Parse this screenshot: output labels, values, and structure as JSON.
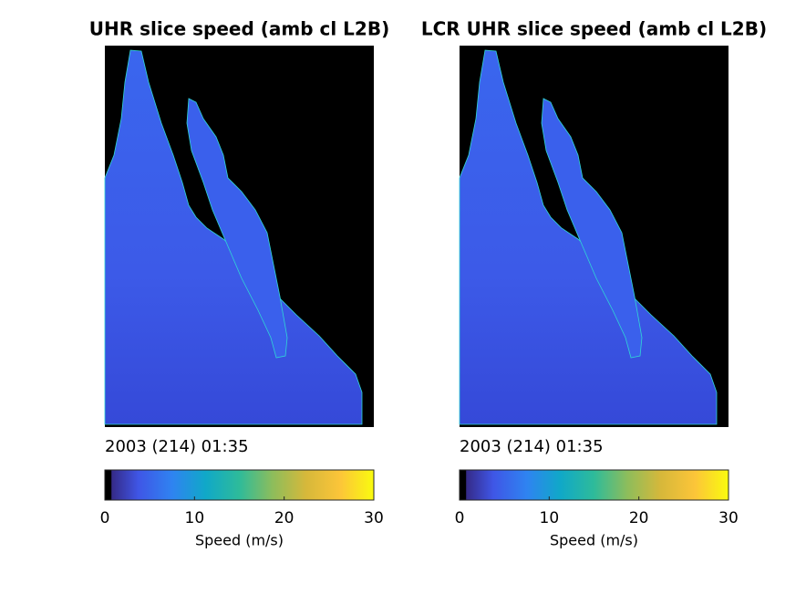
{
  "chart_data": [
    {
      "type": "image",
      "title": "UHR slice speed (amb cl L2B)",
      "timestamp": "2003 (214) 01:35",
      "colorbar": {
        "label": "Speed (m/s)",
        "lim": [
          0,
          30
        ],
        "ticks": [
          0,
          10,
          20,
          30
        ],
        "colormap": [
          "#000000",
          "#352a87",
          "#3f56e6",
          "#2f83f1",
          "#10a8c8",
          "#2ebb9a",
          "#8ebd5b",
          "#d7b83a",
          "#fcc539",
          "#f9fb0e"
        ]
      }
    },
    {
      "type": "image",
      "title": "LCR UHR slice speed (amb cl L2B)",
      "timestamp": "2003 (214) 01:35",
      "colorbar": {
        "label": "Speed (m/s)",
        "lim": [
          0,
          30
        ],
        "ticks": [
          0,
          10,
          20,
          30
        ],
        "colormap": [
          "#000000",
          "#352a87",
          "#3f56e6",
          "#2f83f1",
          "#10a8c8",
          "#2ebb9a",
          "#8ebd5b",
          "#d7b83a",
          "#fcc539",
          "#f9fb0e"
        ]
      }
    }
  ]
}
